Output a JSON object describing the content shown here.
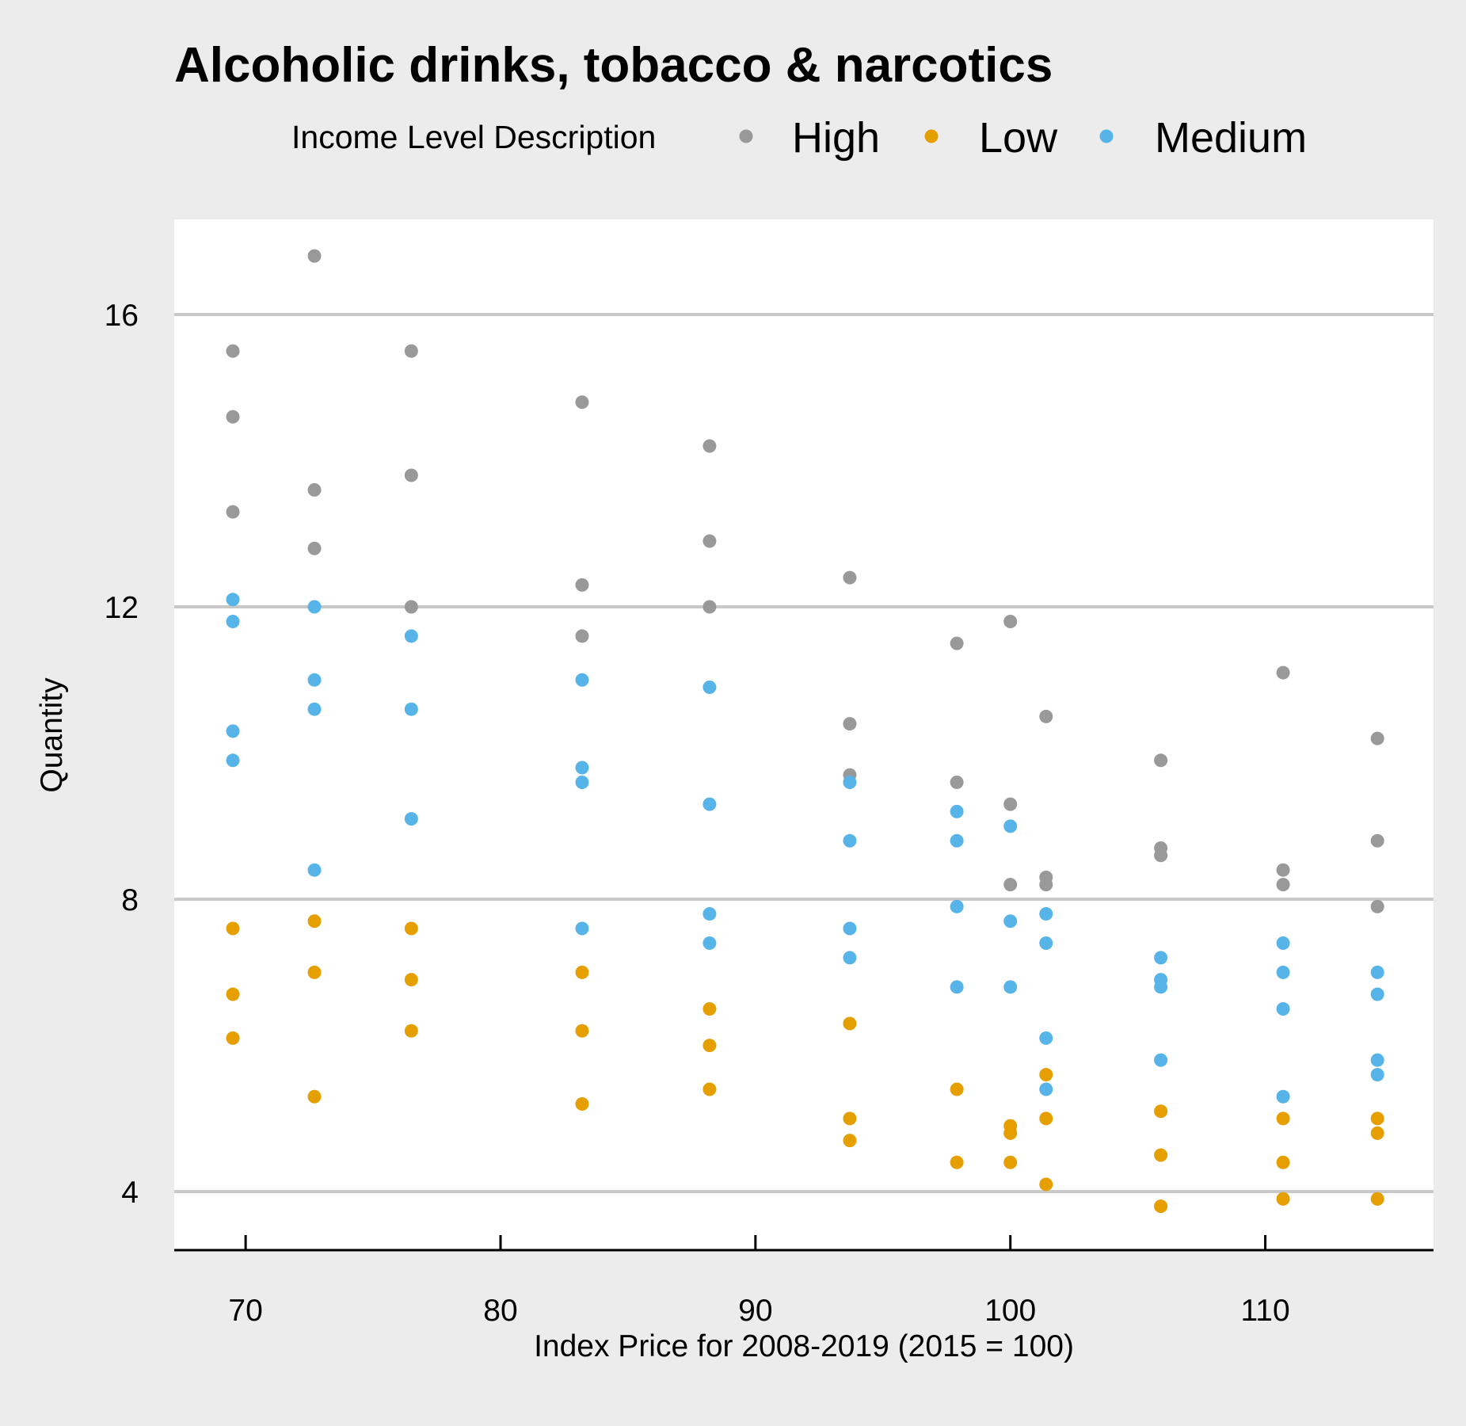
{
  "chart_data": {
    "type": "scatter",
    "title": "Alcoholic drinks, tobacco & narcotics",
    "xlabel": "Index Price for 2008-2019 (2015 = 100)",
    "ylabel": "Quantity",
    "xlim": [
      67.2,
      116.6
    ],
    "ylim": [
      3.2,
      17.3
    ],
    "x_ticks": [
      70,
      80,
      90,
      100,
      110
    ],
    "y_ticks": [
      4,
      8,
      12,
      16
    ],
    "grid": "horizontal",
    "legend": {
      "title": "Income Level Description",
      "placement": "top"
    },
    "series": [
      {
        "name": "High",
        "color": "#999999",
        "points": [
          [
            69.5,
            15.5
          ],
          [
            69.5,
            14.6
          ],
          [
            69.5,
            13.3
          ],
          [
            72.7,
            16.8
          ],
          [
            72.7,
            13.6
          ],
          [
            72.7,
            12.8
          ],
          [
            76.5,
            15.5
          ],
          [
            76.5,
            13.8
          ],
          [
            76.5,
            12.0
          ],
          [
            83.2,
            14.8
          ],
          [
            83.2,
            12.3
          ],
          [
            83.2,
            11.6
          ],
          [
            88.2,
            14.2
          ],
          [
            88.2,
            12.9
          ],
          [
            88.2,
            12.0
          ],
          [
            93.7,
            12.4
          ],
          [
            93.7,
            10.4
          ],
          [
            93.7,
            9.7
          ],
          [
            97.9,
            11.5
          ],
          [
            97.9,
            9.6
          ],
          [
            100.0,
            11.8
          ],
          [
            100.0,
            9.3
          ],
          [
            100.0,
            8.2
          ],
          [
            101.4,
            10.5
          ],
          [
            101.4,
            8.3
          ],
          [
            101.4,
            8.2
          ],
          [
            105.9,
            9.9
          ],
          [
            105.9,
            8.7
          ],
          [
            105.9,
            8.6
          ],
          [
            110.7,
            11.1
          ],
          [
            110.7,
            8.4
          ],
          [
            110.7,
            8.2
          ],
          [
            114.4,
            10.2
          ],
          [
            114.4,
            8.8
          ],
          [
            114.4,
            7.9
          ]
        ]
      },
      {
        "name": "Low",
        "color": "#e69f00",
        "points": [
          [
            69.5,
            7.6
          ],
          [
            69.5,
            6.7
          ],
          [
            69.5,
            6.1
          ],
          [
            72.7,
            7.7
          ],
          [
            72.7,
            7.0
          ],
          [
            72.7,
            5.3
          ],
          [
            76.5,
            7.6
          ],
          [
            76.5,
            6.9
          ],
          [
            76.5,
            6.2
          ],
          [
            83.2,
            7.0
          ],
          [
            83.2,
            6.2
          ],
          [
            83.2,
            5.2
          ],
          [
            88.2,
            6.5
          ],
          [
            88.2,
            6.0
          ],
          [
            88.2,
            5.4
          ],
          [
            93.7,
            6.3
          ],
          [
            93.7,
            5.0
          ],
          [
            93.7,
            4.7
          ],
          [
            97.9,
            5.4
          ],
          [
            97.9,
            4.4
          ],
          [
            100.0,
            4.9
          ],
          [
            100.0,
            4.8
          ],
          [
            100.0,
            4.4
          ],
          [
            101.4,
            5.6
          ],
          [
            101.4,
            5.0
          ],
          [
            101.4,
            4.1
          ],
          [
            105.9,
            5.1
          ],
          [
            105.9,
            4.5
          ],
          [
            105.9,
            3.8
          ],
          [
            110.7,
            5.0
          ],
          [
            110.7,
            4.4
          ],
          [
            110.7,
            3.9
          ],
          [
            114.4,
            5.0
          ],
          [
            114.4,
            4.8
          ],
          [
            114.4,
            3.9
          ]
        ]
      },
      {
        "name": "Medium",
        "color": "#56b4e9",
        "points": [
          [
            69.5,
            12.1
          ],
          [
            69.5,
            11.8
          ],
          [
            69.5,
            10.3
          ],
          [
            69.5,
            9.9
          ],
          [
            72.7,
            12.0
          ],
          [
            72.7,
            11.0
          ],
          [
            72.7,
            10.6
          ],
          [
            72.7,
            8.4
          ],
          [
            76.5,
            11.6
          ],
          [
            76.5,
            10.6
          ],
          [
            76.5,
            9.1
          ],
          [
            83.2,
            11.0
          ],
          [
            83.2,
            9.8
          ],
          [
            83.2,
            9.6
          ],
          [
            83.2,
            7.6
          ],
          [
            88.2,
            10.9
          ],
          [
            88.2,
            9.3
          ],
          [
            88.2,
            7.8
          ],
          [
            88.2,
            7.4
          ],
          [
            93.7,
            9.6
          ],
          [
            93.7,
            8.8
          ],
          [
            93.7,
            7.6
          ],
          [
            93.7,
            7.2
          ],
          [
            97.9,
            9.2
          ],
          [
            97.9,
            8.8
          ],
          [
            97.9,
            7.9
          ],
          [
            97.9,
            6.8
          ],
          [
            100.0,
            9.0
          ],
          [
            100.0,
            7.7
          ],
          [
            100.0,
            6.8
          ],
          [
            101.4,
            7.8
          ],
          [
            101.4,
            7.4
          ],
          [
            101.4,
            6.1
          ],
          [
            101.4,
            5.4
          ],
          [
            105.9,
            7.2
          ],
          [
            105.9,
            6.9
          ],
          [
            105.9,
            6.8
          ],
          [
            105.9,
            5.8
          ],
          [
            110.7,
            7.4
          ],
          [
            110.7,
            7.0
          ],
          [
            110.7,
            6.5
          ],
          [
            110.7,
            5.3
          ],
          [
            114.4,
            7.0
          ],
          [
            114.4,
            6.7
          ],
          [
            114.4,
            5.8
          ],
          [
            114.4,
            5.6
          ]
        ]
      }
    ]
  }
}
